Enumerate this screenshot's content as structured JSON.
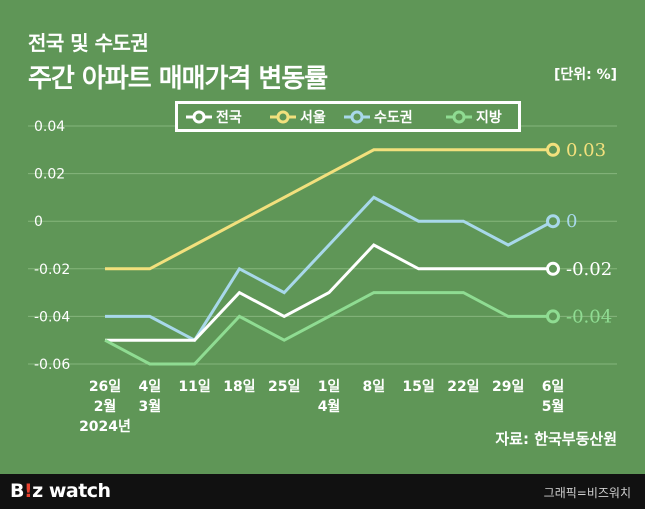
{
  "header": {
    "subtitle": "전국 및 수도권",
    "title": "주간 아파트 매매가격 변동률",
    "unit": "[단위: %]"
  },
  "source": "자료: 한국부동산원",
  "footer": {
    "logo_b": "B",
    "logo_bang": "!",
    "logo_rest": "z watch",
    "credit": "그래픽=비즈워치"
  },
  "colors": {
    "background": "#5f9657",
    "gridline": "#86b57c",
    "national": "#ffffff",
    "seoul": "#f2e07d",
    "capital": "#a8d8ea",
    "local": "#8fdc92"
  },
  "chart_data": {
    "type": "line",
    "x": [
      "26일|2월|2024년",
      "4일|3월",
      "11일",
      "18일",
      "25일",
      "1일|4월",
      "8일",
      "15일",
      "22일",
      "29일",
      "6일|5월"
    ],
    "ylim": [
      -0.06,
      0.04
    ],
    "yticks": [
      "0.04",
      "0.02",
      "0",
      "-0.02",
      "-0.04",
      "-0.06"
    ],
    "ytick_values": [
      0.04,
      0.02,
      0,
      -0.02,
      -0.04,
      -0.06
    ],
    "grid": true,
    "legend_position": "top",
    "series": [
      {
        "name": "전국",
        "color": "#ffffff",
        "values": [
          -0.05,
          -0.05,
          -0.05,
          -0.03,
          -0.04,
          -0.03,
          -0.01,
          -0.02,
          -0.02,
          -0.02,
          -0.02
        ],
        "end_label": "-0.02"
      },
      {
        "name": "서울",
        "color": "#f2e07d",
        "values": [
          -0.02,
          -0.02,
          -0.01,
          0.0,
          0.01,
          0.02,
          0.03,
          0.03,
          0.03,
          0.03,
          0.03
        ],
        "end_label": "0.03"
      },
      {
        "name": "수도권",
        "color": "#a8d8ea",
        "values": [
          -0.04,
          -0.04,
          -0.05,
          -0.02,
          -0.03,
          -0.01,
          0.01,
          0.0,
          0.0,
          -0.01,
          0.0
        ],
        "end_label": "0"
      },
      {
        "name": "지방",
        "color": "#8fdc92",
        "values": [
          -0.05,
          -0.06,
          -0.06,
          -0.04,
          -0.05,
          -0.04,
          -0.03,
          -0.03,
          -0.03,
          -0.04,
          -0.04
        ],
        "end_label": "-0.04"
      }
    ]
  }
}
